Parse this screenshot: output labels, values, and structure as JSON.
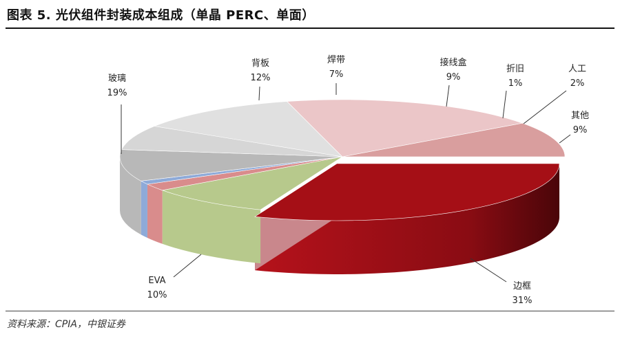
{
  "header": {
    "title": "图表 5. 光伏组件封装成本组成（单晶 PERC、单面）"
  },
  "footer": {
    "source": "资料来源：CPIA，中银证券"
  },
  "chart_data": {
    "type": "pie",
    "style": "3d-exploded-pie",
    "legend": "none",
    "categories": [
      "边框",
      "其他",
      "人工",
      "折旧",
      "接线盒",
      "焊带",
      "背板",
      "玻璃",
      "EVA"
    ],
    "values": [
      31,
      9,
      2,
      1,
      9,
      7,
      12,
      19,
      10
    ],
    "value_labels": [
      "31%",
      "9%",
      "2%",
      "1%",
      "9%",
      "7%",
      "12%",
      "19%",
      "10%"
    ],
    "colors": [
      "#a50f16",
      "#b7c98c",
      "#d98c8c",
      "#8eaad8",
      "#b8b8b8",
      "#d6d6d6",
      "#e0e0e0",
      "#ebc6c8",
      "#d99e9e"
    ]
  }
}
